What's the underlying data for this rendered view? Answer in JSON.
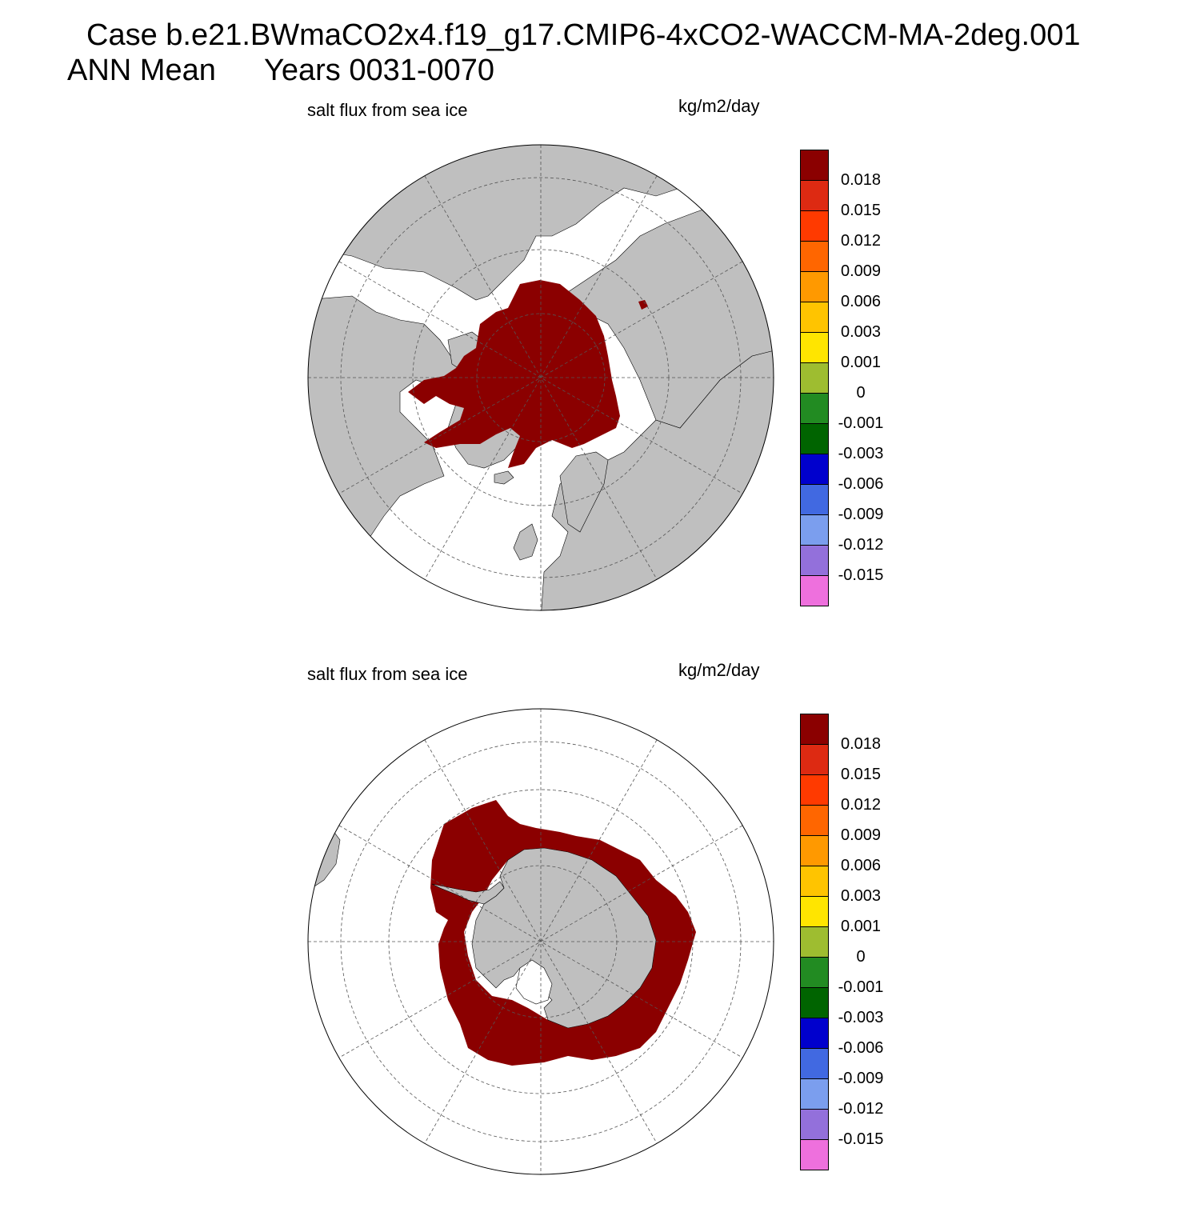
{
  "title": {
    "case": "Case b.e21.BWmaCO2x4.f19_g17.CMIP6-4xCO2-WACCM-MA-2deg.001",
    "season": "ANN Mean",
    "years": "Years 0031-0070"
  },
  "panels": [
    {
      "id": "north",
      "hemisphere": "Northern Hemisphere (polar stereographic)",
      "left_title": "salt flux from sea ice",
      "units": "kg/m2/day"
    },
    {
      "id": "south",
      "hemisphere": "Southern Hemisphere (polar stereographic)",
      "left_title": "salt flux from sea ice",
      "units": "kg/m2/day"
    }
  ],
  "colorbar": {
    "labels": [
      "0.018",
      "0.015",
      "0.012",
      "0.009",
      "0.006",
      "0.003",
      "0.001",
      "0",
      "-0.001",
      "-0.003",
      "-0.006",
      "-0.009",
      "-0.012",
      "-0.015"
    ],
    "colors": [
      "#8b0000",
      "#dd2a12",
      "#ff3a00",
      "#ff6600",
      "#ff9900",
      "#ffc400",
      "#ffe500",
      "#9ebd30",
      "#228b22",
      "#006400",
      "#0000cd",
      "#4169e1",
      "#7b9eee",
      "#9370db",
      "#ee70dd"
    ]
  },
  "colors": {
    "land": "#bfbfbf",
    "field_max": "#8b0000",
    "ocean": "#ffffff"
  }
}
